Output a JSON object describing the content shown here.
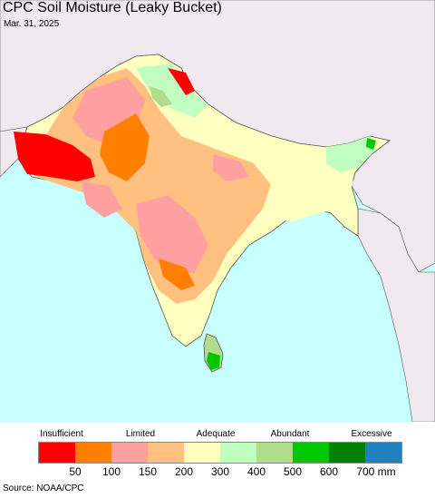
{
  "title": "CPC Soil Moisture (Leaky Bucket)",
  "date": "Mar. 31, 2025",
  "source": "Source: NOAA/CPC",
  "legend": {
    "categories": {
      "insufficient": "Insufficient",
      "limited": "Limited",
      "adequate": "Adequate",
      "abundant": "Abundant",
      "excessive": "Excessive"
    },
    "colors": [
      "#ff0000",
      "#ff8000",
      "#ffa0a0",
      "#ffc080",
      "#ffffc0",
      "#c0ffc0",
      "#b0dc8c",
      "#00c800",
      "#008000",
      "#2080c0"
    ],
    "ticks": [
      "50",
      "100",
      "150",
      "200",
      "300",
      "400",
      "500",
      "600",
      "700 mm"
    ]
  },
  "map_colors": {
    "ocean": "#c8ffff",
    "outside_land": "#f0eaf0",
    "borders": "#444444"
  }
}
